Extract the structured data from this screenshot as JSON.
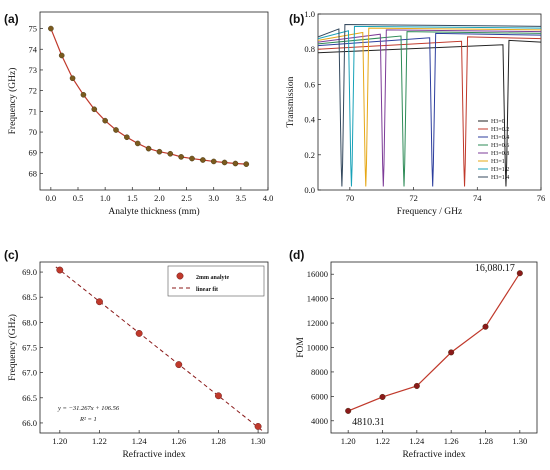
{
  "chart_data": [
    {
      "panel": "(a)",
      "type": "line",
      "xlabel": "Analyte thickness (mm)",
      "ylabel": "Frequency (GHz)",
      "xlim": [
        -0.2,
        4.0
      ],
      "ylim": [
        67.2,
        75.8
      ],
      "xticks": [
        "0.0",
        "0.5",
        "1.0",
        "1.5",
        "2.0",
        "2.5",
        "3.0",
        "3.5",
        "4.0"
      ],
      "yticks": [
        "68",
        "69",
        "70",
        "71",
        "72",
        "73",
        "74",
        "75"
      ],
      "grid": false,
      "colors": {
        "line": "#c0392b",
        "marker": "#7a5a1e"
      },
      "x": [
        0.0,
        0.2,
        0.4,
        0.6,
        0.8,
        1.0,
        1.2,
        1.4,
        1.6,
        1.8,
        2.0,
        2.2,
        2.4,
        2.6,
        2.8,
        3.0,
        3.2,
        3.4,
        3.6
      ],
      "values": [
        75.0,
        73.7,
        72.6,
        71.8,
        71.1,
        70.55,
        70.1,
        69.75,
        69.45,
        69.2,
        69.05,
        68.95,
        68.8,
        68.72,
        68.65,
        68.58,
        68.53,
        68.48,
        68.45
      ]
    },
    {
      "panel": "(b)",
      "type": "line",
      "xlabel": "Frequency / GHz",
      "ylabel": "Transmission",
      "xlim": [
        69,
        76
      ],
      "ylim": [
        0,
        1.0
      ],
      "xticks": [
        "70",
        "72",
        "74",
        "76"
      ],
      "yticks": [
        "0.0",
        "0.2",
        "0.4",
        "0.6",
        "0.8",
        "1.0"
      ],
      "grid": false,
      "legend_position": "bottom-right",
      "series": [
        {
          "name": "H3=0",
          "color": "#222222",
          "dip": 74.9,
          "baseline": 0.82
        },
        {
          "name": "H3=0.2",
          "color": "#c0392b",
          "dip": 73.6,
          "baseline": 0.84
        },
        {
          "name": "H3=0.4",
          "color": "#2c3e9e",
          "dip": 72.6,
          "baseline": 0.86
        },
        {
          "name": "H3=0.6",
          "color": "#2e8b57",
          "dip": 71.7,
          "baseline": 0.87
        },
        {
          "name": "H3=0.8",
          "color": "#7d3c98",
          "dip": 71.05,
          "baseline": 0.88
        },
        {
          "name": "H3=1",
          "color": "#e6a817",
          "dip": 70.5,
          "baseline": 0.89
        },
        {
          "name": "H3=1.2",
          "color": "#17a2b8",
          "dip": 70.05,
          "baseline": 0.9
        },
        {
          "name": "H3=1.4",
          "color": "#34495e",
          "dip": 69.75,
          "baseline": 0.91
        }
      ]
    },
    {
      "panel": "(c)",
      "type": "scatter",
      "xlabel": "Refractive index",
      "ylabel": "Frequency (GHz)",
      "xlim": [
        1.19,
        1.305
      ],
      "ylim": [
        65.8,
        69.2
      ],
      "xticks": [
        "1.20",
        "1.22",
        "1.24",
        "1.26",
        "1.28",
        "1.30"
      ],
      "yticks": [
        "66.0",
        "66.5",
        "67.0",
        "67.5",
        "68.0",
        "68.5",
        "69.0"
      ],
      "grid": false,
      "legend_position": "top-right",
      "legend": [
        "2mm analyte",
        "linear fit"
      ],
      "equation": "y = −31.267x + 106.56",
      "r_squared": "R² = 1",
      "colors": {
        "marker": "#c0392b",
        "fit": "#8b1a1a"
      },
      "x": [
        1.2,
        1.22,
        1.24,
        1.26,
        1.28,
        1.3
      ],
      "values": [
        69.04,
        68.41,
        67.78,
        67.16,
        66.54,
        65.93
      ]
    },
    {
      "panel": "(d)",
      "type": "line",
      "xlabel": "Refractive index",
      "ylabel": "FOM",
      "xlim": [
        1.19,
        1.31
      ],
      "ylim": [
        3000,
        17000
      ],
      "xticks": [
        "1.20",
        "1.22",
        "1.24",
        "1.26",
        "1.28",
        "1.30"
      ],
      "yticks": [
        "4000",
        "6000",
        "8000",
        "10000",
        "12000",
        "14000",
        "16000"
      ],
      "grid": false,
      "colors": {
        "line": "#c0392b",
        "marker": "#8b1a1a"
      },
      "annotations": [
        "4810.31",
        "16,080.17"
      ],
      "x": [
        1.2,
        1.22,
        1.24,
        1.26,
        1.28,
        1.3
      ],
      "values": [
        4810.31,
        5950,
        6850,
        9600,
        11700,
        16080.17
      ]
    }
  ]
}
